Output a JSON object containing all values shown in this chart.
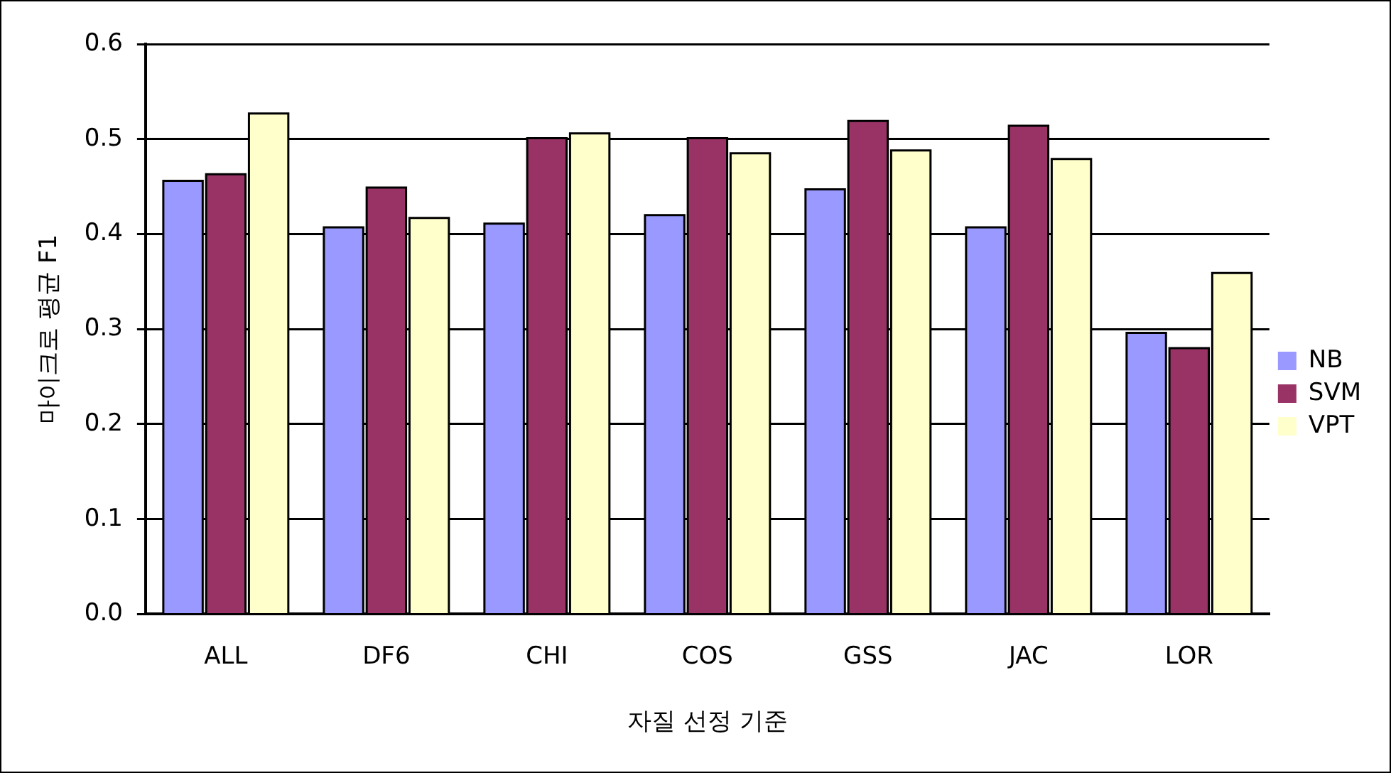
{
  "chart_data": {
    "type": "bar",
    "xlabel": "자질 선정 기준",
    "ylabel": "마이크로 평균 F1",
    "categories": [
      "ALL",
      "DF6",
      "CHI",
      "COS",
      "GSS",
      "JAC",
      "LOR"
    ],
    "series": [
      {
        "name": "NB",
        "color": "#9999ff",
        "values": [
          0.456,
          0.407,
          0.411,
          0.42,
          0.447,
          0.407,
          0.296
        ]
      },
      {
        "name": "SVM",
        "color": "#993366",
        "values": [
          0.463,
          0.449,
          0.501,
          0.501,
          0.519,
          0.514,
          0.28
        ]
      },
      {
        "name": "VPT",
        "color": "#ffffcc",
        "values": [
          0.527,
          0.417,
          0.506,
          0.485,
          0.488,
          0.479,
          0.359
        ]
      }
    ],
    "ylim": [
      0,
      0.6
    ],
    "yticks": [
      {
        "value": 0,
        "label": "0.0"
      },
      0.1,
      0.2,
      0.3,
      0.4,
      0.5,
      0.6
    ],
    "grid": "y",
    "legend": "right"
  }
}
